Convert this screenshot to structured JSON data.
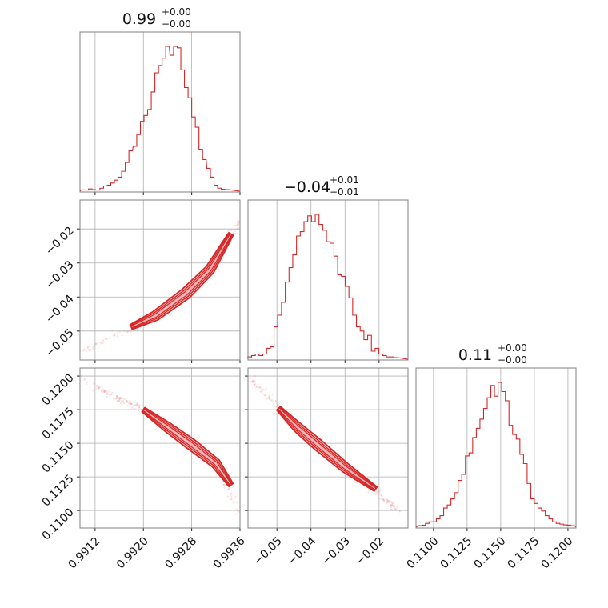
{
  "chart_data": [
    {
      "type": "histogram",
      "panel": "hist-p1",
      "title_value": "0.99",
      "title_plus": "+0.00",
      "title_minus": "−0.00",
      "xlim": [
        0.99095,
        0.9936
      ],
      "x": [
        0.991,
        0.99106,
        0.99112,
        0.99118,
        0.99125,
        0.99131,
        0.99137,
        0.99143,
        0.99149,
        0.99155,
        0.99161,
        0.99167,
        0.99173,
        0.99179,
        0.99186,
        0.99192,
        0.99198,
        0.99204,
        0.9921,
        0.99216,
        0.99222,
        0.99228,
        0.99234,
        0.9924,
        0.99247,
        0.99253,
        0.99259,
        0.99265,
        0.99271,
        0.99277,
        0.99283,
        0.99289,
        0.99295,
        0.99301,
        0.99308,
        0.99314,
        0.9932,
        0.99326,
        0.99332,
        0.99338
      ],
      "values": [
        0.3,
        0.2,
        1,
        0.5,
        0.2,
        1.5,
        3,
        3.5,
        5,
        7,
        9,
        13,
        19,
        27,
        30,
        38,
        47,
        51,
        55,
        67,
        80,
        85,
        90,
        98,
        92,
        98,
        97,
        82,
        70,
        63,
        50,
        43,
        28,
        21,
        15,
        9,
        3.5,
        1.5,
        0.8,
        0.5
      ]
    },
    {
      "type": "histogram",
      "panel": "hist-p2",
      "title_value": "−0.04",
      "title_plus": "+0.01",
      "title_minus": "−0.01",
      "xlim": [
        -0.0585,
        -0.0115
      ],
      "x": [
        -0.058,
        -0.0569,
        -0.0558,
        -0.0547,
        -0.0536,
        -0.0525,
        -0.0514,
        -0.0503,
        -0.0492,
        -0.0481,
        -0.047,
        -0.0459,
        -0.0448,
        -0.0437,
        -0.0426,
        -0.0415,
        -0.0404,
        -0.0393,
        -0.0382,
        -0.0371,
        -0.036,
        -0.0349,
        -0.0338,
        -0.0327,
        -0.0316,
        -0.0305,
        -0.0294,
        -0.0283,
        -0.0272,
        -0.0261,
        -0.025,
        -0.0239,
        -0.0228,
        -0.0217,
        -0.0206,
        -0.0195,
        -0.0184,
        -0.0173,
        -0.0162,
        -0.0151
      ],
      "values": [
        1,
        2,
        3,
        2,
        3,
        7,
        8,
        22,
        30,
        39,
        53,
        63,
        72,
        85,
        88,
        95,
        99,
        95,
        100,
        93,
        89,
        81,
        80,
        71,
        58,
        57,
        50,
        42,
        30,
        22,
        19,
        13,
        16,
        5,
        7,
        3,
        2,
        1,
        1,
        0.5
      ]
    },
    {
      "type": "histogram",
      "panel": "hist-p3",
      "title_value": "0.11",
      "title_plus": "+0.00",
      "title_minus": "−0.00",
      "xlim": [
        0.1087,
        0.1206
      ],
      "x": [
        0.109,
        0.10927,
        0.10954,
        0.10981,
        0.11008,
        0.11035,
        0.11062,
        0.11089,
        0.11116,
        0.11143,
        0.1117,
        0.11197,
        0.11224,
        0.11251,
        0.11278,
        0.11305,
        0.11332,
        0.11359,
        0.11386,
        0.11413,
        0.1144,
        0.11467,
        0.11494,
        0.11521,
        0.11548,
        0.11575,
        0.11602,
        0.11629,
        0.11656,
        0.11683,
        0.1171,
        0.11737,
        0.11764,
        0.11791,
        0.11818,
        0.11845,
        0.11872,
        0.11899,
        0.11926,
        0.11953,
        0.1198,
        0.12007,
        0.12034
      ],
      "values": [
        0.5,
        0.8,
        2,
        3,
        3,
        5,
        7,
        12,
        14,
        18,
        22,
        30,
        34,
        46,
        48,
        58,
        64,
        70,
        77,
        84,
        92,
        85,
        94,
        88,
        82,
        66,
        60,
        57,
        47,
        41,
        28,
        18,
        15,
        12,
        10,
        7,
        5,
        3,
        2,
        1.5,
        1,
        0.8,
        0.5
      ]
    },
    {
      "type": "scatter-contour",
      "panel": "2d-p1-p2",
      "xlim": [
        0.99095,
        0.9936
      ],
      "ylim": [
        -0.0585,
        -0.0115
      ],
      "ridge": [
        [
          0.991,
          -0.056
        ],
        [
          0.9917,
          -0.05
        ],
        [
          0.9922,
          -0.0455
        ],
        [
          0.9927,
          -0.039
        ],
        [
          0.9931,
          -0.032
        ],
        [
          0.9934,
          -0.023
        ],
        [
          0.9936,
          -0.018
        ]
      ],
      "contour_ridge": [
        [
          0.9918,
          -0.0488
        ],
        [
          0.9922,
          -0.0455
        ],
        [
          0.9927,
          -0.039
        ],
        [
          0.9931,
          -0.032
        ],
        [
          0.99345,
          -0.0215
        ]
      ],
      "spread": 0.0012
    },
    {
      "type": "scatter-contour",
      "panel": "2d-p1-p3",
      "xlim": [
        0.99095,
        0.9936
      ],
      "ylim": [
        0.1087,
        0.1206
      ],
      "ridge": [
        [
          0.99095,
          0.1199
        ],
        [
          0.9915,
          0.1185
        ],
        [
          0.992,
          0.1175
        ],
        [
          0.9928,
          0.1151
        ],
        [
          0.9932,
          0.1135
        ],
        [
          0.9936,
          0.1098
        ]
      ],
      "contour_ridge": [
        [
          0.992,
          0.1175
        ],
        [
          0.9924,
          0.1162
        ],
        [
          0.9928,
          0.1149
        ],
        [
          0.9932,
          0.1135
        ],
        [
          0.99345,
          0.1119
        ]
      ],
      "spread": 0.0003
    },
    {
      "type": "scatter-contour",
      "panel": "2d-p2-p3",
      "xlim": [
        -0.0585,
        -0.0115
      ],
      "ylim": [
        0.1087,
        0.1206
      ],
      "ridge": [
        [
          -0.0575,
          0.1197
        ],
        [
          -0.05,
          0.1178
        ],
        [
          -0.04,
          0.1153
        ],
        [
          -0.03,
          0.113
        ],
        [
          -0.02,
          0.1112
        ],
        [
          -0.014,
          0.11
        ]
      ],
      "contour_ridge": [
        [
          -0.0495,
          0.1176
        ],
        [
          -0.044,
          0.1162
        ],
        [
          -0.038,
          0.1149
        ],
        [
          -0.03,
          0.1132
        ],
        [
          -0.021,
          0.1116
        ]
      ],
      "spread": 0.00035
    }
  ],
  "axes": {
    "x_p1_ticks": [
      0.9912,
      0.992,
      0.9928,
      0.9936
    ],
    "x_p1_labels": [
      "0.9912",
      "0.9920",
      "0.9928",
      "0.9936"
    ],
    "x_p2_ticks": [
      -0.05,
      -0.04,
      -0.03,
      -0.02
    ],
    "x_p2_labels": [
      "−0.05",
      "−0.04",
      "−0.03",
      "−0.02"
    ],
    "x_p3_ticks": [
      0.11,
      0.1125,
      0.115,
      0.1175,
      0.12
    ],
    "x_p3_labels": [
      "0.1100",
      "0.1125",
      "0.1150",
      "0.1175",
      "0.1200"
    ],
    "y_p2_ticks": [
      -0.02,
      -0.03,
      -0.04,
      -0.05
    ],
    "y_p2_labels": [
      "−0.02",
      "−0.03",
      "−0.04",
      "−0.05"
    ],
    "y_p3_ticks": [
      0.12,
      0.1175,
      0.115,
      0.1125,
      0.11
    ],
    "y_p3_labels": [
      "0.1200",
      "0.1175",
      "0.1150",
      "0.1125",
      "0.1100"
    ]
  },
  "style": {
    "line_color": "#d62728",
    "fill_color": "#f4a9a8",
    "point_color": "#e8898a",
    "grid": true,
    "grid_color": "#b0b0b0",
    "frame_color": "#808080"
  }
}
